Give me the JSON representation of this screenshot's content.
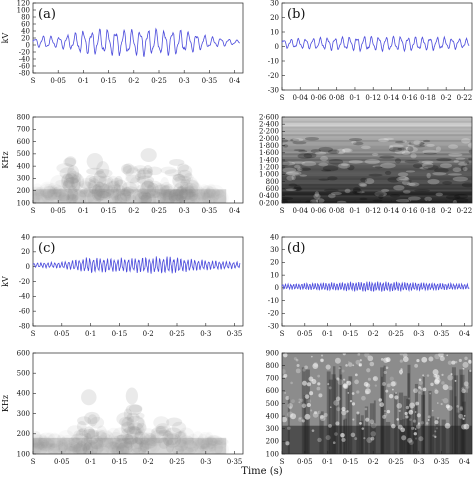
{
  "figure": {
    "xlabel": "Time (s)"
  },
  "chart_data": [
    {
      "panel": "(a)",
      "type": "line",
      "ylabel": "kV",
      "ylim": [
        -80,
        120
      ],
      "yticks": [
        "-80",
        "-60",
        "-40",
        "-20",
        "0",
        "20",
        "40",
        "60",
        "80",
        "100",
        "120"
      ],
      "xlim": [
        0,
        0.42
      ],
      "xticks": [
        "S",
        "0·05",
        "0·1",
        "0·15",
        "0·2",
        "0·25",
        "0·3",
        "0·35",
        "0·4"
      ],
      "series": [
        {
          "envelope": [
            [
              0,
              10
            ],
            [
              0.02,
              18
            ],
            [
              0.05,
              16
            ],
            [
              0.08,
              24
            ],
            [
              0.1,
              34
            ],
            [
              0.15,
              36
            ],
            [
              0.2,
              37
            ],
            [
              0.25,
              36
            ],
            [
              0.3,
              34
            ],
            [
              0.33,
              24
            ],
            [
              0.36,
              14
            ],
            [
              0.39,
              10
            ],
            [
              0.41,
              6
            ]
          ],
          "cycles": 26,
          "offset": 8,
          "color": "#4a4adc"
        }
      ]
    },
    {
      "panel": "(b)",
      "type": "line",
      "ylabel": "",
      "ylim": [
        -30,
        30
      ],
      "yticks": [
        "-30",
        "-20",
        "-10",
        "0",
        "10",
        "20",
        "30"
      ],
      "xlim": [
        0,
        0.23
      ],
      "xticks": [
        "S",
        "0·04",
        "0·06",
        "0·08",
        "0·1",
        "0·12",
        "0·14",
        "0·16",
        "0·18",
        "0·2",
        "0·22"
      ],
      "series": [
        {
          "envelope": [
            [
              0,
              3
            ],
            [
              0.05,
              4
            ],
            [
              0.1,
              5
            ],
            [
              0.15,
              5
            ],
            [
              0.2,
              4
            ],
            [
              0.23,
              3
            ]
          ],
          "cycles": 26,
          "offset": 2,
          "color": "#4a4adc"
        }
      ]
    },
    {
      "panel": "",
      "type": "heatmap",
      "ylabel": "KHz",
      "ylim": [
        0,
        700
      ],
      "yticks": [
        "100",
        "200",
        "300",
        "400",
        "500",
        "600",
        "700",
        "800"
      ],
      "xlim": [
        0,
        0.42
      ],
      "xticks": [
        "S",
        "0·05",
        "0·1",
        "0·15",
        "0·2",
        "0·25",
        "0·3",
        "0·35",
        "0·4"
      ],
      "style": "light",
      "bursts": [
        0.08,
        0.13,
        0.18,
        0.23,
        0.29
      ]
    },
    {
      "panel": "",
      "type": "heatmap",
      "ylabel": "",
      "ylim": [
        0,
        2700
      ],
      "yticks": [
        "0·200",
        "0·400",
        "600",
        "800",
        "1·000",
        "1·200",
        "1·400",
        "1·600",
        "1·800",
        "2·000",
        "2·200",
        "2·400",
        "2·600"
      ],
      "xlim": [
        0,
        0.23
      ],
      "xticks": [
        "S",
        "0·04",
        "0·06",
        "0·08",
        "0·1",
        "0·12",
        "0·14",
        "0·16",
        "0·18",
        "0·2",
        "0·22"
      ],
      "style": "banded"
    },
    {
      "panel": "(c)",
      "type": "line",
      "ylabel": "kV",
      "ylim": [
        -80,
        40
      ],
      "yticks": [
        "-80",
        "-60",
        "-40",
        "-20",
        "0",
        "20",
        "40"
      ],
      "xlim": [
        0,
        0.38
      ],
      "xticks": [
        "S",
        "0·05",
        "0·1",
        "0·15",
        "0·2",
        "0·25",
        "0·3",
        "0·35"
      ],
      "series": [
        {
          "envelope": [
            [
              0,
              3
            ],
            [
              0.05,
              4
            ],
            [
              0.1,
              10
            ],
            [
              0.15,
              9
            ],
            [
              0.2,
              10
            ],
            [
              0.25,
              11
            ],
            [
              0.3,
              7
            ],
            [
              0.35,
              5
            ],
            [
              0.38,
              4
            ]
          ],
          "cycles": 60,
          "offset": 2,
          "color": "#4a4adc"
        }
      ]
    },
    {
      "panel": "(d)",
      "type": "line",
      "ylabel": "",
      "ylim": [
        -30,
        40
      ],
      "yticks": [
        "-30",
        "-20",
        "-10",
        "0",
        "10",
        "20",
        "30",
        "40"
      ],
      "xlim": [
        0,
        0.41
      ],
      "xticks": [
        "S",
        "0·05",
        "0·1",
        "0·15",
        "0·2",
        "0·25",
        "0·3",
        "0·35",
        "0·4"
      ],
      "series": [
        {
          "envelope": [
            [
              0,
              2
            ],
            [
              0.1,
              3
            ],
            [
              0.2,
              4
            ],
            [
              0.3,
              3
            ],
            [
              0.41,
              2
            ]
          ],
          "cycles": 70,
          "offset": 1,
          "color": "#4a4adc"
        }
      ]
    },
    {
      "panel": "",
      "type": "heatmap",
      "ylabel": "KHz",
      "ylim": [
        0,
        700
      ],
      "yticks": [
        "100",
        "200",
        "300",
        "400",
        "500",
        "600"
      ],
      "xlim": [
        0,
        0.38
      ],
      "xticks": [
        "S",
        "0·05",
        "0·1",
        "0·15",
        "0·2",
        "0·25",
        "0·3",
        "0·35"
      ],
      "style": "light",
      "bursts": [
        0.1,
        0.18,
        0.25
      ]
    },
    {
      "panel": "",
      "type": "heatmap",
      "ylabel": "",
      "ylim": [
        0,
        1000
      ],
      "yticks": [
        "100",
        "200",
        "300",
        "400",
        "500",
        "600",
        "700",
        "800",
        "900"
      ],
      "xlim": [
        0,
        0.41
      ],
      "xticks": [
        "S",
        "0·05",
        "0·1",
        "0·15",
        "0·2",
        "0·25",
        "0·3",
        "0·35",
        "0·4"
      ],
      "style": "dark"
    }
  ]
}
